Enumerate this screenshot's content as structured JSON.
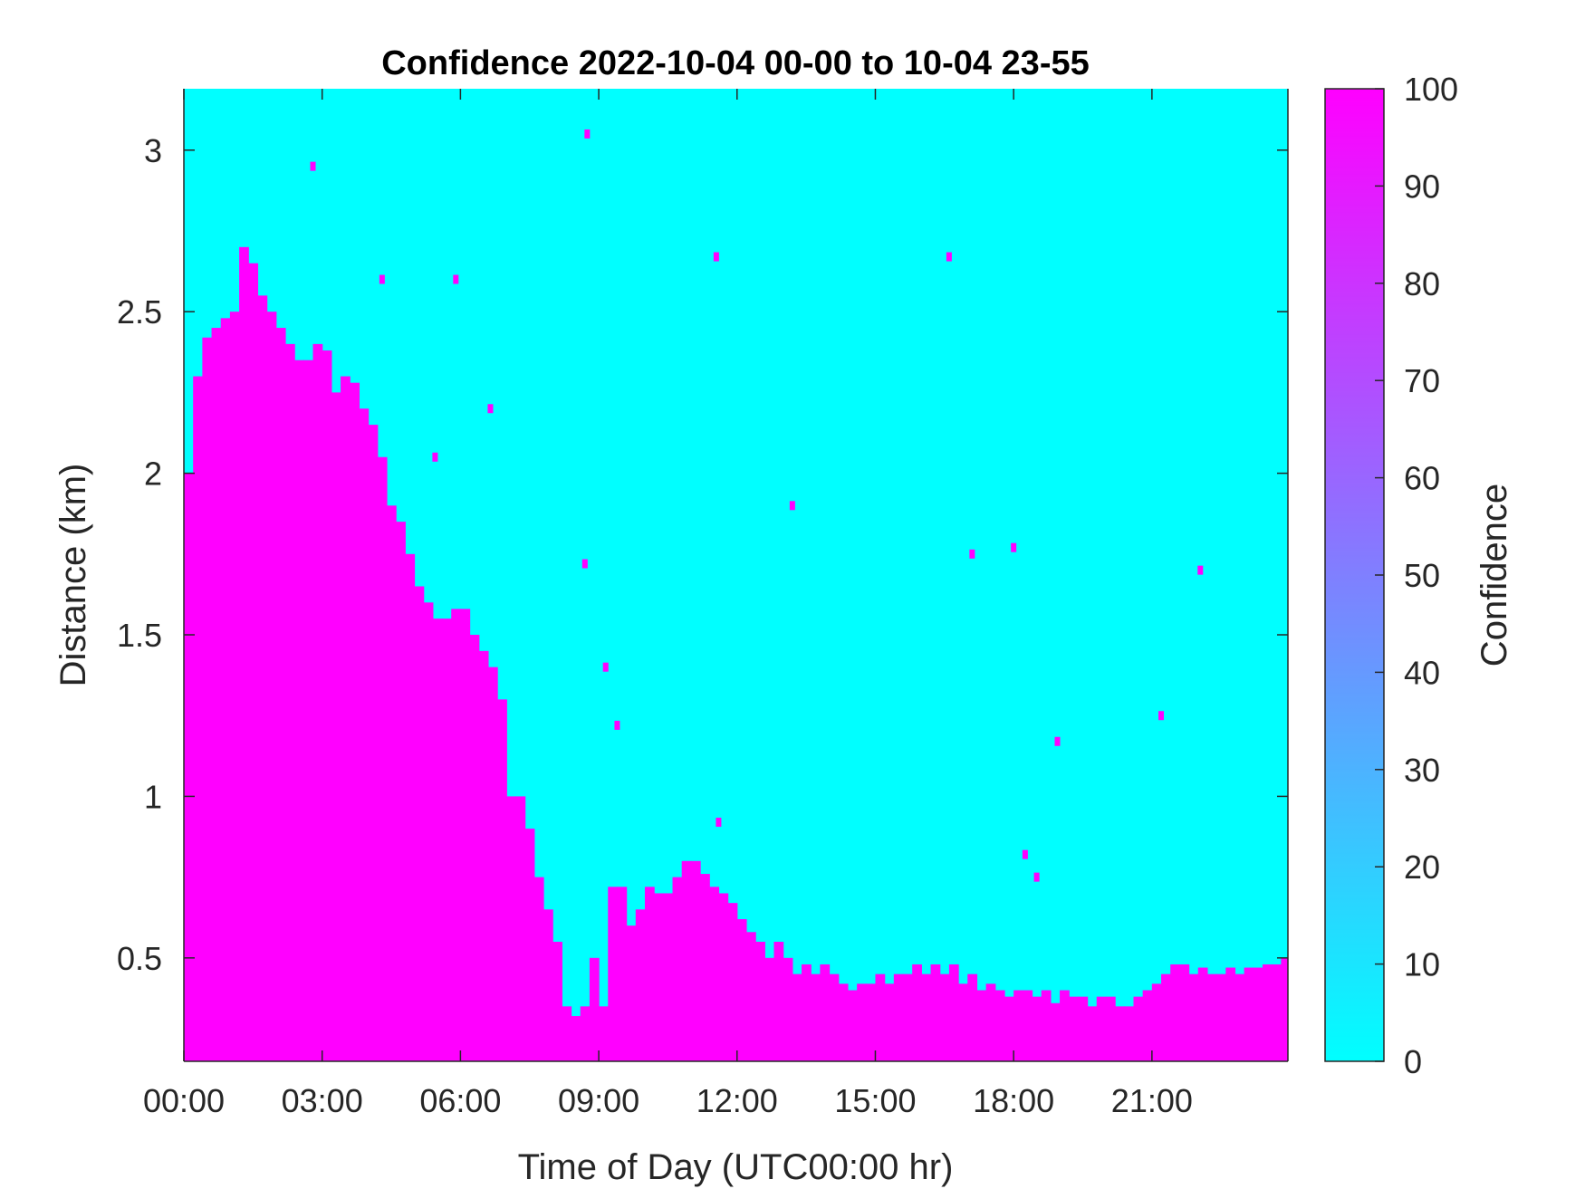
{
  "chart_data": {
    "type": "heatmap",
    "title": "Confidence 2022-10-04 00-00 to 10-04 23-55",
    "xlabel": "Time of Day (UTC00:00 hr)",
    "ylabel": "Distance (km)",
    "colorbar_label": "Confidence",
    "xlim_hours": [
      0,
      23.95
    ],
    "ylim_km": [
      0.18,
      3.19
    ],
    "x_ticks": [
      {
        "value": 0,
        "label": "00:00"
      },
      {
        "value": 3,
        "label": "03:00"
      },
      {
        "value": 6,
        "label": "06:00"
      },
      {
        "value": 9,
        "label": "09:00"
      },
      {
        "value": 12,
        "label": "12:00"
      },
      {
        "value": 15,
        "label": "15:00"
      },
      {
        "value": 18,
        "label": "18:00"
      },
      {
        "value": 21,
        "label": "21:00"
      }
    ],
    "y_ticks": [
      {
        "value": 0.5,
        "label": "0.5"
      },
      {
        "value": 1,
        "label": "1"
      },
      {
        "value": 1.5,
        "label": "1.5"
      },
      {
        "value": 2,
        "label": "2"
      },
      {
        "value": 2.5,
        "label": "2.5"
      },
      {
        "value": 3,
        "label": "3"
      }
    ],
    "colorbar": {
      "range": [
        0,
        100
      ],
      "ticks": [
        {
          "value": 0,
          "label": "0"
        },
        {
          "value": 10,
          "label": "10"
        },
        {
          "value": 20,
          "label": "20"
        },
        {
          "value": 30,
          "label": "30"
        },
        {
          "value": 40,
          "label": "40"
        },
        {
          "value": 50,
          "label": "50"
        },
        {
          "value": 60,
          "label": "60"
        },
        {
          "value": 70,
          "label": "70"
        },
        {
          "value": 80,
          "label": "80"
        },
        {
          "value": 90,
          "label": "90"
        },
        {
          "value": 100,
          "label": "100"
        }
      ],
      "colormap": "cool",
      "low_color": "#00ffff",
      "high_color": "#ff00ff"
    },
    "high_confidence_boundary": {
      "description_value": "upper distance (km) of the 100-confidence region at each time; below this, confidence = 100, above, confidence = 0",
      "time_hours": [
        0.0,
        0.2,
        0.4,
        0.6,
        0.8,
        1.0,
        1.2,
        1.4,
        1.6,
        1.8,
        2.0,
        2.2,
        2.4,
        2.6,
        2.8,
        3.0,
        3.2,
        3.4,
        3.6,
        3.8,
        4.0,
        4.2,
        4.4,
        4.6,
        4.8,
        5.0,
        5.2,
        5.4,
        5.6,
        5.8,
        6.0,
        6.2,
        6.4,
        6.6,
        6.8,
        7.0,
        7.2,
        7.4,
        7.6,
        7.8,
        8.0,
        8.2,
        8.4,
        8.6,
        8.8,
        9.0,
        9.2,
        9.4,
        9.6,
        9.8,
        10.0,
        10.2,
        10.4,
        10.6,
        10.8,
        11.0,
        11.2,
        11.4,
        11.6,
        11.8,
        12.0,
        12.2,
        12.4,
        12.6,
        12.8,
        13.0,
        13.2,
        13.4,
        13.6,
        13.8,
        14.0,
        14.2,
        14.4,
        14.6,
        14.8,
        15.0,
        15.2,
        15.4,
        15.6,
        15.8,
        16.0,
        16.2,
        16.4,
        16.6,
        16.8,
        17.0,
        17.2,
        17.4,
        17.6,
        17.8,
        18.0,
        18.2,
        18.4,
        18.6,
        18.8,
        19.0,
        19.2,
        19.4,
        19.6,
        19.8,
        20.0,
        20.2,
        20.4,
        20.6,
        20.8,
        21.0,
        21.2,
        21.4,
        21.6,
        21.8,
        22.0,
        22.2,
        22.4,
        22.6,
        22.8,
        23.0,
        23.2,
        23.4,
        23.6,
        23.8,
        23.95
      ],
      "distance_km": [
        2.0,
        2.3,
        2.42,
        2.45,
        2.48,
        2.5,
        2.7,
        2.65,
        2.55,
        2.5,
        2.45,
        2.4,
        2.35,
        2.35,
        2.4,
        2.38,
        2.25,
        2.3,
        2.28,
        2.2,
        2.15,
        2.05,
        1.9,
        1.85,
        1.75,
        1.65,
        1.6,
        1.55,
        1.55,
        1.58,
        1.58,
        1.5,
        1.45,
        1.4,
        1.3,
        1.0,
        1.0,
        0.9,
        0.75,
        0.65,
        0.55,
        0.35,
        0.32,
        0.35,
        0.5,
        0.35,
        0.72,
        0.72,
        0.6,
        0.65,
        0.72,
        0.7,
        0.7,
        0.75,
        0.8,
        0.8,
        0.76,
        0.72,
        0.7,
        0.67,
        0.62,
        0.58,
        0.55,
        0.5,
        0.55,
        0.5,
        0.45,
        0.48,
        0.45,
        0.48,
        0.45,
        0.42,
        0.4,
        0.42,
        0.42,
        0.45,
        0.42,
        0.45,
        0.45,
        0.48,
        0.45,
        0.48,
        0.45,
        0.48,
        0.42,
        0.45,
        0.4,
        0.42,
        0.4,
        0.38,
        0.4,
        0.4,
        0.38,
        0.4,
        0.36,
        0.4,
        0.38,
        0.38,
        0.35,
        0.38,
        0.38,
        0.35,
        0.35,
        0.38,
        0.4,
        0.42,
        0.45,
        0.48,
        0.48,
        0.45,
        0.47,
        0.45,
        0.45,
        0.47,
        0.45,
        0.47,
        0.47,
        0.48,
        0.48,
        0.5,
        0.47
      ]
    },
    "isolated_high_confidence_cells": [
      {
        "time_hours": 8.75,
        "distance_km": 3.05
      },
      {
        "time_hours": 2.8,
        "distance_km": 2.95
      },
      {
        "time_hours": 4.3,
        "distance_km": 2.6
      },
      {
        "time_hours": 5.9,
        "distance_km": 2.6
      },
      {
        "time_hours": 11.55,
        "distance_km": 2.67
      },
      {
        "time_hours": 16.6,
        "distance_km": 2.67
      },
      {
        "time_hours": 6.65,
        "distance_km": 2.2
      },
      {
        "time_hours": 5.45,
        "distance_km": 2.05
      },
      {
        "time_hours": 13.2,
        "distance_km": 1.9
      },
      {
        "time_hours": 8.7,
        "distance_km": 1.72
      },
      {
        "time_hours": 17.1,
        "distance_km": 1.75
      },
      {
        "time_hours": 18.0,
        "distance_km": 1.77
      },
      {
        "time_hours": 22.05,
        "distance_km": 1.7
      },
      {
        "time_hours": 9.15,
        "distance_km": 1.4
      },
      {
        "time_hours": 9.4,
        "distance_km": 1.22
      },
      {
        "time_hours": 21.2,
        "distance_km": 1.25
      },
      {
        "time_hours": 18.95,
        "distance_km": 1.17
      },
      {
        "time_hours": 11.6,
        "distance_km": 0.92
      },
      {
        "time_hours": 18.25,
        "distance_km": 0.82
      },
      {
        "time_hours": 18.5,
        "distance_km": 0.75
      }
    ]
  }
}
